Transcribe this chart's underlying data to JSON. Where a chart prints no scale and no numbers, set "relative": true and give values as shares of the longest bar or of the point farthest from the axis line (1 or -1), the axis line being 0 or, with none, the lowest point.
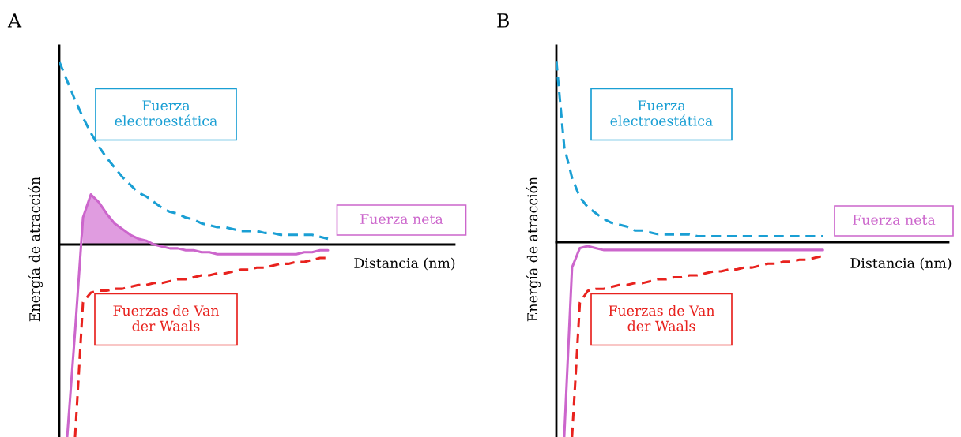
{
  "chart_data": [
    {
      "type": "line",
      "title": "A",
      "xlabel": "Distancia (nm)",
      "ylabel": "Energía de atracción",
      "relative": true,
      "categories": [
        null,
        null,
        null,
        null,
        null,
        null,
        null,
        null,
        null,
        null,
        null,
        null,
        null,
        null,
        null,
        null,
        null,
        null,
        null,
        null,
        null,
        null,
        null,
        null,
        null,
        null,
        null,
        null,
        null,
        null,
        null,
        null,
        null,
        null,
        null,
        null,
        null,
        null,
        null,
        null,
        null,
        null,
        null,
        null,
        null,
        null,
        null,
        null,
        null,
        null,
        null
      ],
      "series": [
        {
          "name": "Fuerza electroestática",
          "color": "#1a9fd4",
          "line_style": "dashed",
          "values": [
            0.95,
            0.85,
            0.75,
            0.66,
            0.58,
            0.51,
            0.45,
            0.4,
            0.35,
            0.31,
            0.27,
            0.25,
            0.22,
            0.19,
            0.17,
            0.16,
            0.14,
            0.13,
            0.11,
            0.1,
            0.09,
            0.09,
            0.08,
            0.07,
            0.07,
            0.07,
            0.06,
            0.06,
            0.05,
            0.05,
            0.05,
            0.05,
            0.05,
            0.04,
            0.03,
            null,
            null,
            null,
            null,
            null,
            null,
            null,
            null,
            null,
            null,
            null,
            null,
            null,
            null,
            null,
            null
          ]
        },
        {
          "type": "area",
          "color": "#e09ce0",
          "values": [
            null,
            null,
            null,
            0.14,
            0.26,
            0.22,
            0.16,
            0.11,
            0.08,
            0.05,
            0.03,
            0.02,
            0,
            null,
            null,
            null,
            null,
            null,
            null,
            null,
            null,
            null,
            null,
            null,
            null,
            null,
            null,
            null,
            null,
            null,
            null,
            null,
            null,
            null,
            null,
            null,
            null,
            null,
            null,
            null,
            null,
            null,
            null,
            null,
            null,
            null,
            null,
            null,
            null,
            null,
            null
          ]
        },
        {
          "name": "Fuerza neta",
          "color": "#cc66cc",
          "line_style": "solid",
          "values": [
            null,
            -1,
            -0.45,
            0.14,
            0.26,
            0.22,
            0.16,
            0.11,
            0.08,
            0.05,
            0.03,
            0.02,
            0,
            -0.01,
            -0.02,
            -0.02,
            -0.03,
            -0.03,
            -0.04,
            -0.04,
            -0.05,
            -0.05,
            -0.05,
            -0.05,
            -0.05,
            -0.05,
            -0.05,
            -0.05,
            -0.05,
            -0.05,
            -0.05,
            -0.04,
            -0.04,
            -0.03,
            -0.03,
            null,
            null,
            null,
            null,
            null,
            null,
            null,
            null,
            null,
            null,
            null,
            null,
            null,
            null,
            null,
            null
          ]
        },
        {
          "name": "Fuerzas de Van der Waals",
          "color": "#e8221e",
          "line_style": "dashed",
          "values": [
            null,
            null,
            -1,
            -0.3,
            -0.25,
            -0.24,
            -0.24,
            -0.23,
            -0.23,
            -0.22,
            -0.21,
            -0.21,
            -0.2,
            -0.2,
            -0.19,
            -0.18,
            -0.18,
            -0.17,
            -0.16,
            -0.16,
            -0.15,
            -0.15,
            -0.14,
            -0.13,
            -0.13,
            -0.12,
            -0.12,
            -0.11,
            -0.1,
            -0.1,
            -0.09,
            -0.09,
            -0.08,
            -0.07,
            -0.07,
            null,
            null,
            null,
            null,
            null,
            null,
            null,
            null,
            null,
            null,
            null,
            null,
            null,
            null,
            null,
            null
          ]
        }
      ]
    },
    {
      "type": "line",
      "title": "B",
      "xlabel": "Distancia (nm)",
      "ylabel": "Energía de atracción",
      "relative": true,
      "categories": [
        null,
        null,
        null,
        null,
        null,
        null,
        null,
        null,
        null,
        null,
        null,
        null,
        null,
        null,
        null,
        null,
        null,
        null,
        null,
        null,
        null,
        null,
        null,
        null,
        null,
        null,
        null,
        null,
        null,
        null,
        null,
        null,
        null,
        null,
        null,
        null,
        null,
        null,
        null,
        null,
        null,
        null,
        null,
        null,
        null,
        null,
        null,
        null,
        null,
        null,
        null
      ],
      "series": [
        {
          "name": "Fuerza electroestática",
          "color": "#1a9fd4",
          "line_style": "dashed",
          "values": [
            0.93,
            0.49,
            0.33,
            0.23,
            0.18,
            0.15,
            0.12,
            0.1,
            0.09,
            0.08,
            0.06,
            0.06,
            0.05,
            0.04,
            0.04,
            0.04,
            0.04,
            0.04,
            0.03,
            0.03,
            0.03,
            0.03,
            0.03,
            0.03,
            0.03,
            0.03,
            0.03,
            0.03,
            0.03,
            0.03,
            0.03,
            0.03,
            0.03,
            0.03,
            0.03,
            null,
            null,
            null,
            null,
            null,
            null,
            null,
            null,
            null,
            null,
            null,
            null,
            null,
            null,
            null,
            null
          ]
        },
        {
          "name": "Fuerza neta",
          "color": "#cc66cc",
          "line_style": "solid",
          "values": [
            null,
            -1,
            -0.13,
            -0.03,
            -0.02,
            -0.03,
            -0.04,
            -0.04,
            -0.04,
            -0.04,
            -0.04,
            -0.04,
            -0.04,
            -0.04,
            -0.04,
            -0.04,
            -0.04,
            -0.04,
            -0.04,
            -0.04,
            -0.04,
            -0.04,
            -0.04,
            -0.04,
            -0.04,
            -0.04,
            -0.04,
            -0.04,
            -0.04,
            -0.04,
            -0.04,
            -0.04,
            -0.04,
            -0.04,
            -0.04,
            null,
            null,
            null,
            null,
            null,
            null,
            null,
            null,
            null,
            null,
            null,
            null,
            null,
            null,
            null,
            null
          ]
        },
        {
          "name": "Fuerzas de Van der Waals",
          "color": "#e8221e",
          "line_style": "dashed",
          "values": [
            null,
            null,
            -1,
            -0.31,
            -0.25,
            -0.24,
            -0.24,
            -0.23,
            -0.22,
            -0.22,
            -0.21,
            -0.21,
            -0.2,
            -0.19,
            -0.19,
            -0.18,
            -0.18,
            -0.17,
            -0.17,
            -0.16,
            -0.15,
            -0.15,
            -0.14,
            -0.14,
            -0.13,
            -0.13,
            -0.12,
            -0.11,
            -0.11,
            -0.1,
            -0.1,
            -0.09,
            -0.09,
            -0.08,
            -0.07,
            null,
            null,
            null,
            null,
            null,
            null,
            null,
            null,
            null,
            null,
            null,
            null,
            null,
            null,
            null,
            null
          ]
        }
      ]
    }
  ]
}
